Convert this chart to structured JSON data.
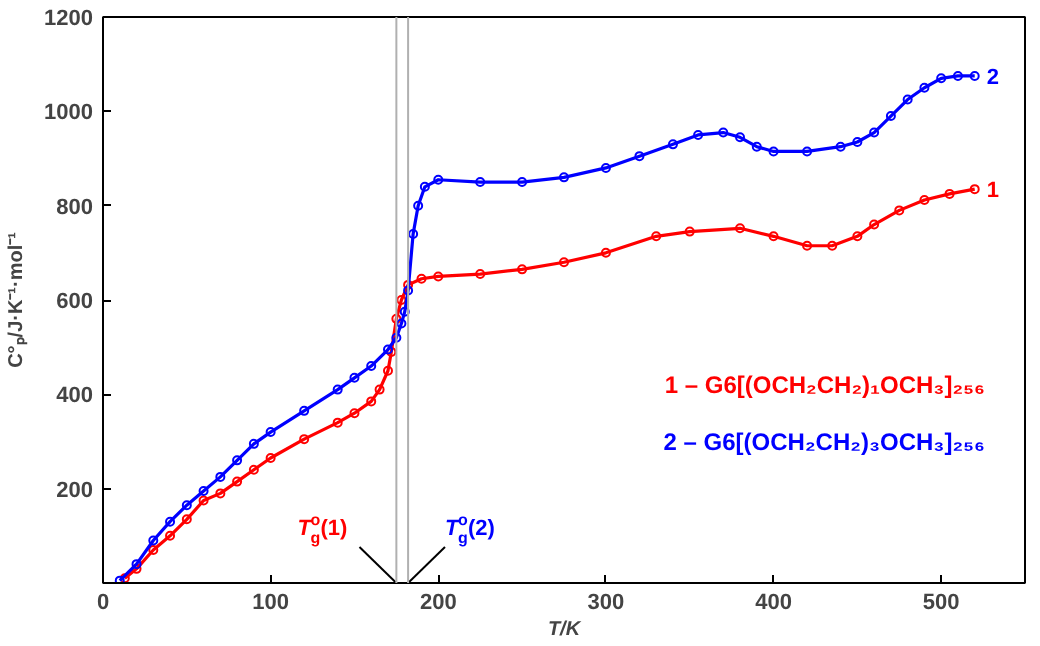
{
  "chart_data": {
    "type": "line",
    "xlabel": "T/K",
    "ylabel": "C°ₚ/J·K⁻¹·mol⁻¹",
    "xlim": [
      0,
      550
    ],
    "ylim": [
      0,
      1200
    ],
    "xticks": [
      {
        "value": 0,
        "label": "0"
      },
      100,
      200,
      300,
      400,
      500
    ],
    "yticks": [
      {
        "value": 0,
        "label": null
      },
      200,
      400,
      600,
      800,
      1000,
      1200
    ],
    "marker": "circle",
    "legend": "right",
    "grid": false,
    "series": [
      {
        "name": "1 – G6[(OCH₂CH₂)₁OCH₃]₂₅₆",
        "color": "#ff0000",
        "x": [
          13,
          20,
          30,
          40,
          50,
          60,
          70,
          80,
          90,
          100,
          120,
          140,
          150,
          160,
          165,
          170,
          172,
          175,
          178,
          182,
          190,
          200,
          225,
          250,
          275,
          300,
          330,
          350,
          380,
          400,
          420,
          435,
          450,
          460,
          475,
          490,
          505,
          520
        ],
        "values": [
          10,
          30,
          70,
          100,
          135,
          175,
          190,
          215,
          240,
          265,
          305,
          340,
          360,
          385,
          410,
          450,
          490,
          560,
          600,
          632,
          645,
          650,
          655,
          665,
          680,
          700,
          735,
          745,
          752,
          735,
          715,
          715,
          735,
          760,
          790,
          812,
          825,
          835
        ]
      },
      {
        "name": "2 – G6[(OCH₂CH₂)₃OCH₃]₂₅₆",
        "color": "#0000ff",
        "x": [
          10,
          20,
          30,
          40,
          50,
          60,
          70,
          80,
          90,
          100,
          120,
          140,
          150,
          160,
          170,
          175,
          178,
          180,
          182,
          185,
          188,
          192,
          200,
          225,
          250,
          275,
          300,
          320,
          340,
          355,
          370,
          380,
          390,
          400,
          420,
          440,
          450,
          460,
          470,
          480,
          490,
          500,
          510,
          520
        ],
        "values": [
          5,
          40,
          90,
          130,
          165,
          195,
          225,
          260,
          295,
          320,
          365,
          410,
          435,
          460,
          495,
          520,
          550,
          575,
          620,
          740,
          800,
          840,
          855,
          850,
          850,
          860,
          880,
          905,
          930,
          950,
          955,
          945,
          925,
          915,
          915,
          925,
          935,
          955,
          990,
          1025,
          1050,
          1070,
          1075,
          1075
        ]
      }
    ],
    "ref_lines": [
      {
        "axis": "x",
        "value": 175,
        "label": "T$^{o}$$_{g}$(1)",
        "color": "#b0b0b0"
      },
      {
        "axis": "x",
        "value": 182,
        "label": "T$^{o}$$_{g}$(2)",
        "color": "#b0b0b0"
      }
    ],
    "annotations": [
      {
        "text": "1",
        "x": 520,
        "y": 835
      },
      {
        "text": "2",
        "x": 520,
        "y": 1075
      }
    ]
  }
}
